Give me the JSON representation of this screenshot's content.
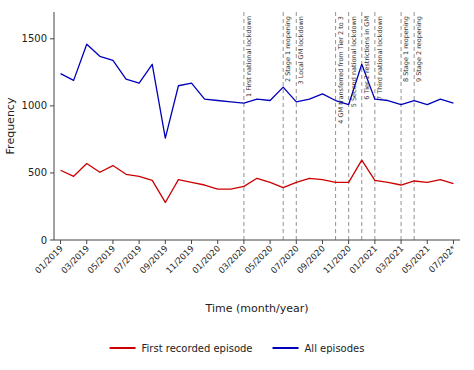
{
  "chart_data": {
    "type": "line",
    "categories": [
      "01/2019",
      null,
      "03/2019",
      null,
      "05/2019",
      null,
      "07/2019",
      null,
      "09/2019",
      null,
      "11/2019",
      null,
      "01/2020",
      null,
      "03/2020",
      null,
      "05/2020",
      null,
      "07/2020",
      null,
      "09/2020",
      null,
      "11/2020",
      null,
      "01/2021",
      null,
      "03/2021",
      null,
      "05/2021",
      null,
      "07/202*"
    ],
    "series": [
      {
        "name": "First recorded episode",
        "color": "#cc0000",
        "values": [
          520,
          475,
          570,
          505,
          555,
          490,
          475,
          445,
          280,
          450,
          430,
          410,
          380,
          380,
          400,
          460,
          430,
          390,
          430,
          460,
          450,
          430,
          430,
          595,
          445,
          430,
          410,
          440,
          430,
          450,
          420
        ]
      },
      {
        "name": "All episodes",
        "color": "#0000bb",
        "values": [
          1240,
          1190,
          1460,
          1370,
          1340,
          1200,
          1170,
          1310,
          760,
          1150,
          1170,
          1050,
          1040,
          1030,
          1020,
          1050,
          1040,
          1140,
          1030,
          1050,
          1090,
          1040,
          1010,
          1310,
          1050,
          1040,
          1010,
          1040,
          1010,
          1050,
          1020
        ]
      }
    ],
    "annotations": [
      {
        "index": 14,
        "text": "1 First national lockdown"
      },
      {
        "index": 17,
        "text": "2 Stage 1 reopening"
      },
      {
        "index": 18,
        "text": "3 Local GM lockdown"
      },
      {
        "index": 21,
        "text": "4 GM transferred from Tier 2 to 3"
      },
      {
        "index": 22,
        "text": "5 Second national lockdown"
      },
      {
        "index": 23,
        "text": "6 Tier 2 restrictions in GM"
      },
      {
        "index": 24,
        "text": "7 Third national lockdown"
      },
      {
        "index": 26,
        "text": "8 Stage 1 reopening"
      },
      {
        "index": 27,
        "text": "9 Stage 2 reopening"
      }
    ],
    "ylim": [
      0,
      1700
    ],
    "yticks": [
      0,
      500,
      1000,
      1500
    ],
    "y_label": "Frequency",
    "x_label": "Time (month/year)",
    "grid": false,
    "legend": "bottom"
  }
}
